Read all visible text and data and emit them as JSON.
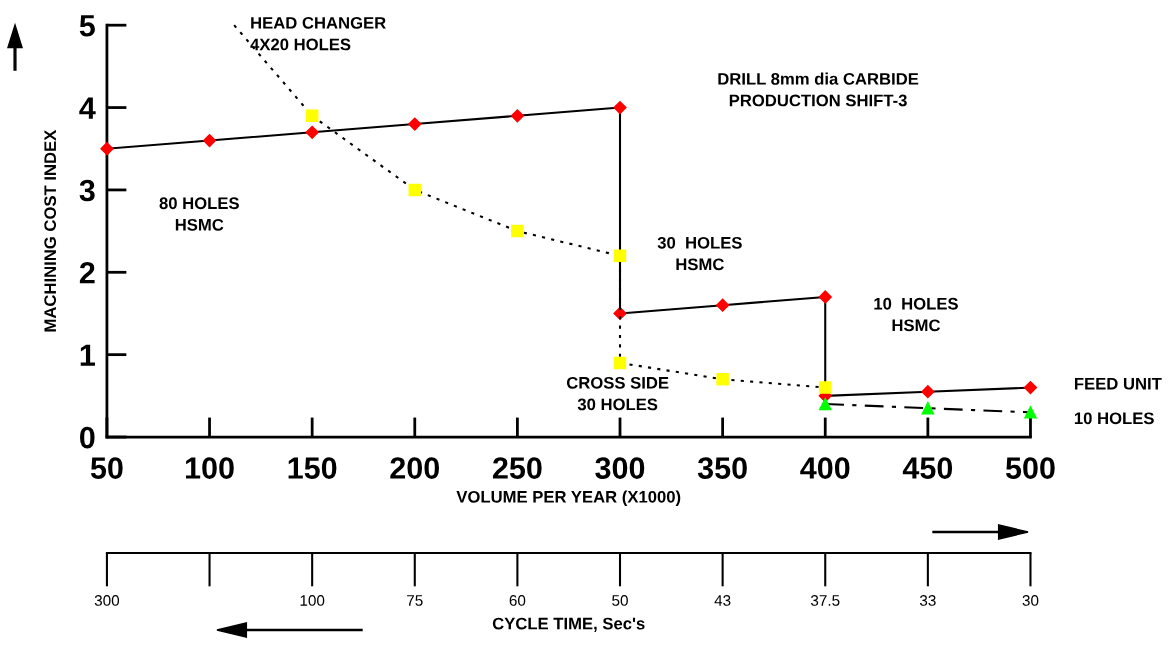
{
  "chart_data": [
    {
      "type": "line",
      "xlabel": "VOLUME PER YEAR (X1000)",
      "ylabel": "MACHINING COST INDEX",
      "xlim": [
        50,
        500
      ],
      "xticks": [
        50,
        100,
        150,
        200,
        250,
        300,
        350,
        400,
        450,
        500
      ],
      "ylim": [
        0,
        5
      ],
      "yticks": [
        0,
        1,
        2,
        3,
        4,
        5
      ],
      "grid": false,
      "legend": false,
      "series": [
        {
          "color": "#ff0000",
          "marker": "diamond",
          "line_style": "solid",
          "x": [
            50,
            100,
            150,
            200,
            250,
            300,
            300,
            350,
            400,
            400,
            450,
            500
          ],
          "values": [
            3.5,
            3.6,
            3.7,
            3.8,
            3.9,
            4.0,
            1.5,
            1.6,
            1.7,
            0.5,
            0.55,
            0.6
          ]
        },
        {
          "color": "#000000",
          "marker": "none",
          "line_style": "dotted",
          "x": [
            112,
            150
          ],
          "values": [
            5,
            3.9
          ]
        },
        {
          "color": "#ffff00",
          "marker": "square",
          "line_style": "dotted",
          "x": [
            150,
            200,
            250,
            300,
            300,
            350,
            400
          ],
          "values": [
            3.9,
            3.0,
            2.5,
            2.2,
            0.9,
            0.7,
            0.6
          ]
        },
        {
          "color": "#00ff00",
          "marker": "triangle",
          "line_style": "dashed",
          "x": [
            400,
            450,
            500
          ],
          "values": [
            0.4,
            0.35,
            0.3
          ]
        }
      ],
      "annotations": [
        "HEAD CHANGER\n4X20 HOLES",
        "80 HOLES\nHSMC",
        "30  HOLES\nHSMC",
        "10  HOLES\nHSMC",
        "CROSS SIDE\n30 HOLES",
        "FEED UNIT",
        "10 HOLES",
        "DRILL 8mm dia CARBIDE\nPRODUCTION SHIFT-3"
      ]
    },
    {
      "type": "other",
      "xlabel": "CYCLE TIME, Sec's",
      "categories": [
        "300",
        null,
        "100",
        "75",
        "60",
        "50",
        "43",
        "37.5",
        "33",
        "30"
      ]
    }
  ]
}
